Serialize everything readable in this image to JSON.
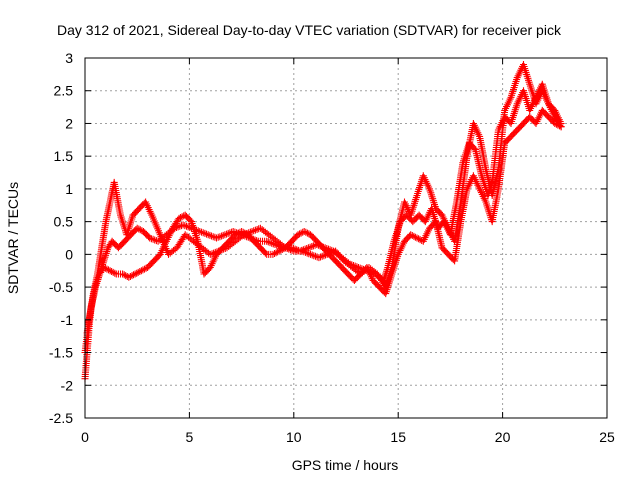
{
  "chart_data": {
    "type": "scatter",
    "title": "Day 312 of 2021, Sidereal Day-to-day VTEC variation (SDTVAR) for receiver pick",
    "xlabel": "GPS time / hours",
    "ylabel": "SDTVAR / TECUs",
    "xlim": [
      0,
      25
    ],
    "ylim": [
      -2.5,
      3
    ],
    "xticks": [
      "0",
      "5",
      "10",
      "15",
      "20",
      "25"
    ],
    "yticks": [
      "-2.5",
      "-2",
      "-1.5",
      "-1",
      "-0.5",
      "0",
      "0.5",
      "1",
      "1.5",
      "2",
      "2.5",
      "3"
    ],
    "grid": true,
    "marker": "+",
    "series_color": "#ff0000",
    "series": [
      {
        "x": [
          0.0,
          0.1,
          0.2,
          0.3,
          0.5,
          0.7,
          0.9,
          1.1,
          1.3,
          1.6,
          1.9,
          2.2,
          2.5,
          2.8,
          3.1,
          3.5,
          3.9,
          4.3,
          4.7,
          5.1,
          5.5,
          5.9,
          6.3,
          6.7,
          7.1,
          7.5,
          7.9,
          8.3,
          8.7,
          9.1,
          9.5,
          9.9,
          10.3,
          10.7,
          11.1,
          11.5,
          11.9,
          12.3,
          12.7,
          13.1,
          13.5,
          13.9,
          14.3,
          14.5,
          14.8,
          15.1,
          15.4,
          15.7,
          16.0,
          16.3,
          16.6,
          16.9,
          17.2,
          17.5,
          17.8,
          18.1,
          18.4,
          18.7,
          19.0,
          19.3,
          19.5,
          19.8,
          20.1,
          20.4,
          20.7,
          21.0,
          21.3,
          21.6,
          21.9,
          22.2,
          22.5,
          22.8
        ],
        "y": [
          -1.9,
          -1.5,
          -1.1,
          -0.8,
          -0.5,
          -0.3,
          -0.1,
          0.1,
          0.2,
          0.1,
          0.2,
          0.3,
          0.4,
          0.35,
          0.25,
          0.2,
          0.3,
          0.4,
          0.45,
          0.4,
          0.35,
          0.3,
          0.25,
          0.3,
          0.35,
          0.3,
          0.25,
          0.2,
          0.2,
          0.15,
          0.1,
          0.1,
          0.05,
          0.1,
          0.15,
          0.1,
          0.05,
          -0.05,
          -0.15,
          -0.2,
          -0.25,
          -0.3,
          -0.4,
          -0.2,
          0.2,
          0.5,
          0.6,
          0.5,
          0.6,
          0.5,
          0.7,
          0.4,
          0.5,
          0.3,
          0.8,
          1.4,
          1.7,
          1.6,
          1.2,
          0.9,
          1.1,
          1.9,
          2.1,
          2.0,
          2.3,
          2.5,
          2.2,
          2.4,
          2.6,
          2.3,
          2.2,
          2.0
        ]
      },
      {
        "x": [
          0.0,
          0.2,
          0.4,
          0.6,
          0.8,
          1.0,
          1.2,
          1.4,
          1.7,
          2.0,
          2.3,
          2.6,
          2.9,
          3.2,
          3.6,
          4.0,
          4.4,
          4.8,
          5.2,
          5.6,
          6.0,
          6.4,
          6.8,
          7.2,
          7.6,
          8.0,
          8.4,
          8.8,
          9.2,
          9.6,
          10.0,
          10.4,
          10.8,
          11.2,
          11.6,
          12.0,
          12.4,
          12.8,
          13.2,
          13.6,
          14.0,
          14.4,
          14.7,
          15.0,
          15.3,
          15.6,
          15.9,
          16.2,
          16.5,
          16.8,
          17.1,
          17.4,
          17.7,
          18.0,
          18.3,
          18.6,
          18.9,
          19.2,
          19.5,
          19.8,
          20.1,
          20.4,
          20.7,
          21.0,
          21.3,
          21.6,
          21.9,
          22.2,
          22.5,
          22.8
        ],
        "y": [
          -1.5,
          -1.0,
          -0.6,
          -0.3,
          0.1,
          0.5,
          0.8,
          1.1,
          0.6,
          0.3,
          0.6,
          0.7,
          0.8,
          0.6,
          0.3,
          0.0,
          0.1,
          0.3,
          0.2,
          0.1,
          0.0,
          0.05,
          0.1,
          0.2,
          0.3,
          0.35,
          0.4,
          0.3,
          0.2,
          0.1,
          0.05,
          0.05,
          0.0,
          -0.05,
          0.0,
          0.05,
          -0.1,
          -0.2,
          -0.3,
          -0.2,
          -0.3,
          -0.5,
          -0.2,
          0.4,
          0.8,
          0.6,
          0.9,
          1.2,
          1.0,
          0.7,
          0.6,
          0.4,
          0.2,
          0.8,
          1.5,
          2.0,
          1.8,
          1.3,
          0.9,
          1.3,
          2.2,
          2.4,
          2.7,
          2.9,
          2.6,
          2.3,
          2.5,
          2.3,
          2.1,
          1.95
        ]
      },
      {
        "x": [
          0.1,
          0.3,
          0.5,
          0.7,
          0.9,
          1.2,
          1.5,
          1.8,
          2.1,
          2.4,
          2.7,
          3.0,
          3.3,
          3.6,
          3.9,
          4.2,
          4.5,
          4.8,
          5.1,
          5.4,
          5.7,
          6.0,
          6.3,
          6.6,
          6.9,
          7.2,
          7.5,
          7.8,
          8.1,
          8.4,
          8.7,
          9.0,
          9.3,
          9.6,
          9.9,
          10.2,
          10.5,
          10.8,
          11.1,
          11.4,
          11.7,
          12.0,
          12.3,
          12.6,
          12.9,
          13.2,
          13.5,
          13.8,
          14.1,
          14.4,
          14.7,
          15.0,
          15.3,
          15.6,
          15.9,
          16.2,
          16.5,
          16.8,
          17.1,
          17.4,
          17.7,
          18.0,
          18.3,
          18.6,
          18.9,
          19.2,
          19.5,
          19.8,
          20.1,
          20.4,
          20.7,
          21.0,
          21.3,
          21.6,
          21.9,
          22.2,
          22.5,
          22.8
        ],
        "y": [
          -1.2,
          -0.8,
          -0.5,
          -0.3,
          -0.2,
          -0.25,
          -0.3,
          -0.3,
          -0.35,
          -0.3,
          -0.25,
          -0.2,
          -0.1,
          0.0,
          0.2,
          0.4,
          0.55,
          0.6,
          0.5,
          0.2,
          -0.3,
          -0.2,
          0.0,
          0.1,
          0.2,
          0.3,
          0.35,
          0.3,
          0.2,
          0.1,
          0.0,
          0.0,
          0.05,
          0.1,
          0.2,
          0.3,
          0.35,
          0.3,
          0.2,
          0.1,
          0.0,
          -0.1,
          -0.2,
          -0.3,
          -0.4,
          -0.3,
          -0.2,
          -0.4,
          -0.5,
          -0.6,
          -0.3,
          0.0,
          0.2,
          0.3,
          0.25,
          0.2,
          0.4,
          0.5,
          0.1,
          0.0,
          -0.1,
          0.5,
          1.0,
          1.2,
          1.0,
          0.8,
          0.5,
          1.0,
          1.7,
          1.8,
          1.9,
          2.0,
          2.1,
          2.0,
          2.2,
          2.1,
          2.0,
          1.95
        ]
      }
    ]
  }
}
